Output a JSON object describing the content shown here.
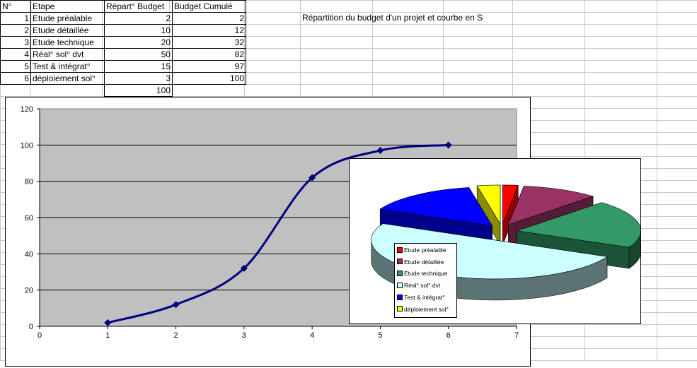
{
  "sheet": {
    "headers": {
      "num": "N°",
      "step": "Etape",
      "budget": "Répart° Budget",
      "cumul": "Budget Cumulé"
    },
    "rows": [
      {
        "num": "1",
        "step": "Etude préalable",
        "budget": "2",
        "cumul": "2"
      },
      {
        "num": "2",
        "step": "Etude détaillée",
        "budget": "10",
        "cumul": "12"
      },
      {
        "num": "3",
        "step": "Etude technique",
        "budget": "20",
        "cumul": "32"
      },
      {
        "num": "4",
        "step": "Réal° sol° dvt",
        "budget": "50",
        "cumul": "82"
      },
      {
        "num": "5",
        "step": "Test & intégrat°",
        "budget": "15",
        "cumul": "97"
      },
      {
        "num": "6",
        "step": "déploiement sol°",
        "budget": "3",
        "cumul": "100"
      }
    ],
    "total": "100",
    "caption": "Répartition du budget d'un projet et courbe en S"
  },
  "chart_data": [
    {
      "type": "line",
      "x": [
        1,
        2,
        3,
        4,
        5,
        6
      ],
      "series": [
        {
          "values": [
            2,
            12,
            32,
            82,
            97,
            100
          ]
        }
      ],
      "xlim": [
        0,
        7
      ],
      "ylim": [
        0,
        120
      ],
      "xticks": [
        "0",
        "1",
        "2",
        "3",
        "4",
        "5",
        "6",
        "7"
      ],
      "yticks": [
        "0",
        "20",
        "40",
        "60",
        "80",
        "100",
        "120"
      ],
      "grid": true,
      "line_color": "#000080",
      "plot_bg": "#c0c0c0"
    },
    {
      "type": "pie",
      "categories": [
        "Etude préalable",
        "Etude détaillée",
        "Etude technique",
        "Réal° sol° dvt",
        "Test & intégrat°",
        "déploiement sol°"
      ],
      "values": [
        2,
        10,
        20,
        50,
        15,
        3
      ],
      "colors": [
        "#ff0000",
        "#993366",
        "#339966",
        "#ccffff",
        "#0000ff",
        "#ffff00"
      ],
      "legend": "left-inside"
    }
  ]
}
